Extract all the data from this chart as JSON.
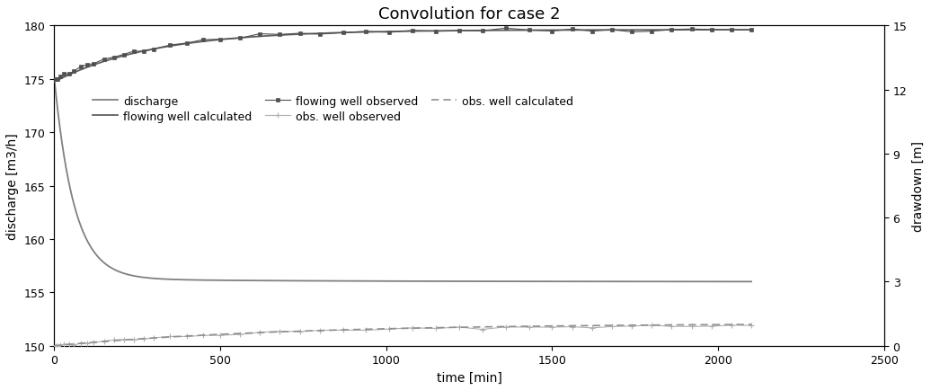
{
  "title": "Convolution for case 2",
  "xlabel": "time [min]",
  "ylabel_left": "discharge [m3/h]",
  "ylabel_right": "drawdown [m]",
  "xlim": [
    0,
    2500
  ],
  "ylim_left": [
    150,
    180
  ],
  "ylim_right": [
    0,
    15
  ],
  "yticks_left": [
    150,
    155,
    160,
    165,
    170,
    175,
    180
  ],
  "yticks_right": [
    0,
    3,
    6,
    9,
    12,
    15
  ],
  "xticks": [
    0,
    500,
    1000,
    1500,
    2000,
    2500
  ],
  "discharge_color": "#808080",
  "flowing_calc_color": "#606060",
  "flowing_obs_color": "#505050",
  "obs_obs_color": "#b0b0b0",
  "obs_calc_color": "#909090",
  "background_color": "#ffffff",
  "title_fontsize": 13,
  "label_fontsize": 10,
  "tick_fontsize": 9,
  "legend_fontsize": 9
}
